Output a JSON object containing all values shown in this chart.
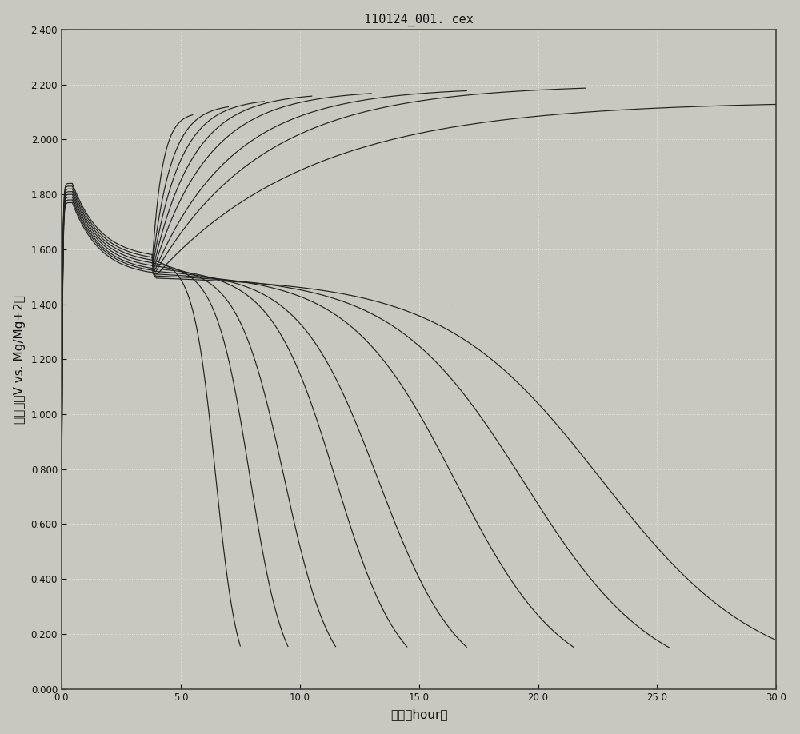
{
  "title": "110124_001. cex",
  "xlabel": "时间（hour）",
  "ylabel": "电压／（V vs. Mg/Mg+2）",
  "xlim": [
    0.0,
    30.0
  ],
  "ylim": [
    0.0,
    2.4
  ],
  "xticks": [
    0.0,
    5.0,
    10.0,
    15.0,
    20.0,
    25.0,
    30.0
  ],
  "yticks": [
    0.0,
    0.2,
    0.4,
    0.6,
    0.8,
    1.0,
    1.2,
    1.4,
    1.6,
    1.8,
    2.0,
    2.2,
    2.4
  ],
  "bg_color": "#c8c8c0",
  "line_color": "#222222",
  "grid_color": "#e8e8e0",
  "num_cycles": 8,
  "charge_end_times": [
    5.5,
    7.0,
    8.5,
    10.5,
    13.0,
    17.0,
    22.0,
    30.0
  ],
  "charge_end_voltages": [
    2.1,
    2.13,
    2.15,
    2.17,
    2.18,
    2.19,
    2.2,
    2.14
  ],
  "discharge_end_times": [
    7.5,
    9.5,
    11.5,
    14.5,
    17.0,
    21.5,
    25.5,
    30.0
  ],
  "discharge_end_voltages": [
    0.05,
    0.05,
    0.05,
    0.05,
    0.05,
    0.05,
    0.05,
    0.08
  ],
  "v_starts": [
    0.55,
    0.52,
    0.5,
    0.48,
    0.46,
    0.44,
    0.42,
    0.4
  ],
  "v_peaks": [
    1.84,
    1.83,
    1.82,
    1.81,
    1.8,
    1.79,
    1.78,
    1.77
  ],
  "v_troughs": [
    1.565,
    1.555,
    1.545,
    1.535,
    1.525,
    1.515,
    1.508,
    1.5
  ],
  "v_charge_starts": [
    1.545,
    1.535,
    1.525,
    1.515,
    1.508,
    1.5,
    1.495,
    1.488
  ]
}
